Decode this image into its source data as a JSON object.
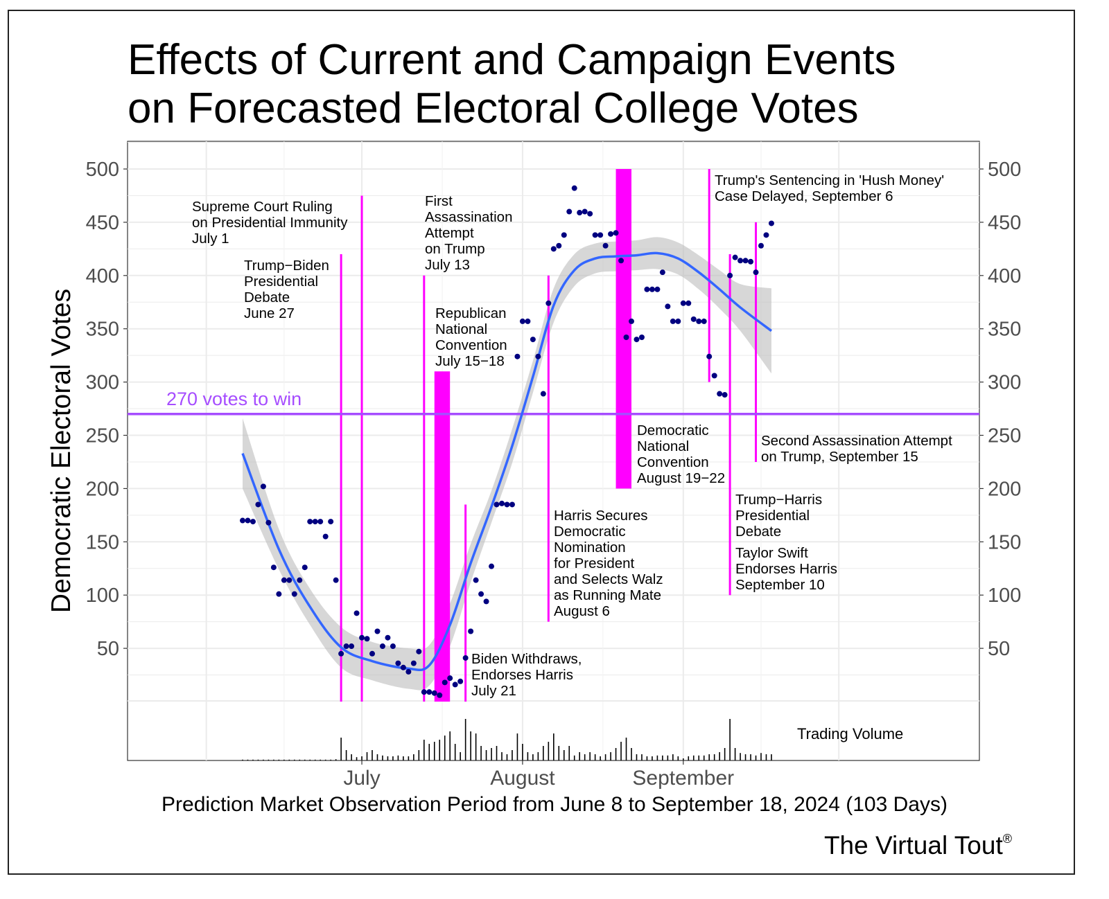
{
  "chart_data": {
    "type": "scatter",
    "title_lines": [
      "Effects of Current and Campaign Events",
      "on Forecasted Electoral College Votes"
    ],
    "ylabel": "Democratic Electoral Votes",
    "xlabel": "Prediction Market Observation Period from June 8 to September 18, 2024 (103 Days)",
    "x_ticks": [
      {
        "date": "2024-07-01",
        "label": "July"
      },
      {
        "date": "2024-08-01",
        "label": "August"
      },
      {
        "date": "2024-09-01",
        "label": "September"
      }
    ],
    "y_ticks": [
      50,
      100,
      150,
      200,
      250,
      300,
      350,
      400,
      450,
      500
    ],
    "ylim": [
      0,
      525
    ],
    "grid": true,
    "threshold": {
      "value": 270,
      "label": "270 votes to win",
      "color": "#a64dff"
    },
    "colors": {
      "points": "#000080",
      "smooth": "#3366ff",
      "band": "#bdbdbd",
      "events": "#ff00ff",
      "volume": "#000000"
    },
    "series": {
      "dates_start": "2024-06-08",
      "values": [
        170,
        170,
        169,
        185,
        202,
        168,
        126,
        101,
        114,
        114,
        101,
        114,
        126,
        169,
        169,
        169,
        155,
        169,
        114,
        45,
        52,
        52,
        83,
        60,
        59,
        45,
        66,
        52,
        60,
        52,
        36,
        32,
        28,
        36,
        47,
        9,
        9,
        8,
        6,
        18,
        22,
        16,
        19,
        41,
        66,
        114,
        101,
        94,
        127,
        185,
        186,
        185,
        185,
        324,
        357,
        357,
        340,
        324,
        289,
        374,
        425,
        428,
        438,
        460,
        482,
        459,
        460,
        458,
        438,
        438,
        428,
        439,
        440,
        414,
        342,
        357,
        340,
        342,
        387,
        387,
        387,
        403,
        371,
        357,
        357,
        374,
        374,
        359,
        357,
        357,
        324,
        306,
        289,
        288,
        400,
        417,
        414,
        414,
        413,
        403,
        428,
        438,
        449
      ]
    },
    "smooth": [
      {
        "date": "2024-06-08",
        "fit": 233,
        "lo": 200,
        "hi": 266
      },
      {
        "date": "2024-06-15",
        "fit": 143,
        "lo": 124,
        "hi": 162
      },
      {
        "date": "2024-06-21",
        "fit": 89,
        "lo": 72,
        "hi": 106
      },
      {
        "date": "2024-06-27",
        "fit": 51,
        "lo": 32,
        "hi": 70
      },
      {
        "date": "2024-07-03",
        "fit": 38,
        "lo": 20,
        "hi": 56
      },
      {
        "date": "2024-07-10",
        "fit": 31,
        "lo": 12,
        "hi": 50
      },
      {
        "date": "2024-07-14",
        "fit": 34,
        "lo": 15,
        "hi": 53
      },
      {
        "date": "2024-07-18",
        "fit": 72,
        "lo": 52,
        "hi": 92
      },
      {
        "date": "2024-07-22",
        "fit": 130,
        "lo": 112,
        "hi": 148
      },
      {
        "date": "2024-07-26",
        "fit": 183,
        "lo": 168,
        "hi": 198
      },
      {
        "date": "2024-07-30",
        "fit": 240,
        "lo": 224,
        "hi": 256
      },
      {
        "date": "2024-08-03",
        "fit": 305,
        "lo": 290,
        "hi": 320
      },
      {
        "date": "2024-08-07",
        "fit": 372,
        "lo": 356,
        "hi": 388
      },
      {
        "date": "2024-08-11",
        "fit": 405,
        "lo": 390,
        "hi": 420
      },
      {
        "date": "2024-08-15",
        "fit": 416,
        "lo": 402,
        "hi": 430
      },
      {
        "date": "2024-08-19",
        "fit": 418,
        "lo": 404,
        "hi": 432
      },
      {
        "date": "2024-08-23",
        "fit": 419,
        "lo": 405,
        "hi": 433
      },
      {
        "date": "2024-08-27",
        "fit": 421,
        "lo": 406,
        "hi": 436
      },
      {
        "date": "2024-08-31",
        "fit": 416,
        "lo": 401,
        "hi": 431
      },
      {
        "date": "2024-09-04",
        "fit": 403,
        "lo": 387,
        "hi": 419
      },
      {
        "date": "2024-09-08",
        "fit": 387,
        "lo": 369,
        "hi": 405
      },
      {
        "date": "2024-09-12",
        "fit": 370,
        "lo": 348,
        "hi": 392
      },
      {
        "date": "2024-09-18",
        "fit": 348,
        "lo": 308,
        "hi": 388
      }
    ],
    "volume": {
      "label": "Trading Volume",
      "values": [
        2,
        2,
        2,
        2,
        2,
        2,
        2,
        2,
        2,
        2,
        2,
        2,
        2,
        2,
        2,
        2,
        2,
        2,
        3,
        55,
        25,
        15,
        8,
        10,
        20,
        25,
        15,
        12,
        10,
        10,
        12,
        10,
        10,
        15,
        25,
        50,
        40,
        45,
        50,
        60,
        70,
        40,
        20,
        100,
        70,
        65,
        35,
        25,
        30,
        35,
        20,
        15,
        25,
        65,
        40,
        20,
        15,
        20,
        35,
        45,
        65,
        35,
        25,
        35,
        12,
        20,
        15,
        20,
        15,
        10,
        15,
        20,
        30,
        45,
        55,
        30,
        15,
        15,
        10,
        10,
        12,
        12,
        12,
        15,
        10,
        5,
        10,
        12,
        12,
        12,
        15,
        15,
        20,
        30,
        100,
        30,
        18,
        15,
        15,
        12,
        18,
        15,
        15
      ]
    },
    "events": [
      {
        "id": "debate1",
        "date": "2024-06-27",
        "y_range": [
          0,
          420
        ],
        "lines": [
          "Trump−Biden",
          "Presidential",
          "Debate",
          "June 27"
        ]
      },
      {
        "id": "scotus",
        "date": "2024-07-01",
        "y_range": [
          0,
          475
        ],
        "lines": [
          "Supreme Court Ruling",
          "on Presidential Immunity",
          "July 1"
        ]
      },
      {
        "id": "assassination1",
        "date": "2024-07-13",
        "y_range": [
          0,
          400
        ],
        "lines": [
          "First",
          "Assassination",
          "Attempt",
          "on Trump",
          "July 13"
        ]
      },
      {
        "id": "rnc",
        "start": "2024-07-15",
        "end": "2024-07-18",
        "y_range": [
          0,
          310
        ],
        "lines": [
          "Republican",
          "National",
          "Convention",
          "July 15−18"
        ]
      },
      {
        "id": "biden",
        "date": "2024-07-21",
        "y_range": [
          0,
          185
        ],
        "lines": [
          "Biden Withdraws,",
          "Endorses Harris",
          "July 21"
        ]
      },
      {
        "id": "harris-nom",
        "date": "2024-08-06",
        "y_range": [
          75,
          400
        ],
        "lines": [
          "Harris Secures",
          "Democratic",
          "Nomination",
          "for President",
          "and Selects Walz",
          "as Running Mate",
          "August 6"
        ]
      },
      {
        "id": "dnc",
        "start": "2024-08-19",
        "end": "2024-08-22",
        "y_range": [
          200,
          500
        ],
        "lines": [
          "Democratic",
          "National",
          "Convention",
          "August 19−22"
        ]
      },
      {
        "id": "sentencing",
        "date": "2024-09-06",
        "y_range": [
          300,
          500
        ],
        "lines": [
          "Trump's Sentencing in 'Hush Money'",
          "Case Delayed, September 6"
        ]
      },
      {
        "id": "debate2",
        "date": "2024-09-10",
        "y_range": [
          100,
          420
        ],
        "lines": [
          "Trump−Harris",
          "Presidential",
          "Debate"
        ],
        "extra_lines": [
          "Taylor Swift",
          "Endorses Harris",
          "September 10"
        ]
      },
      {
        "id": "assassination2",
        "date": "2024-09-15",
        "y_range": [
          225,
          450
        ],
        "lines": [
          "Second Assassination Attempt",
          "on Trump, September 15"
        ]
      }
    ]
  },
  "branding": {
    "name": "The Virtual Tout",
    "mark": "®"
  }
}
